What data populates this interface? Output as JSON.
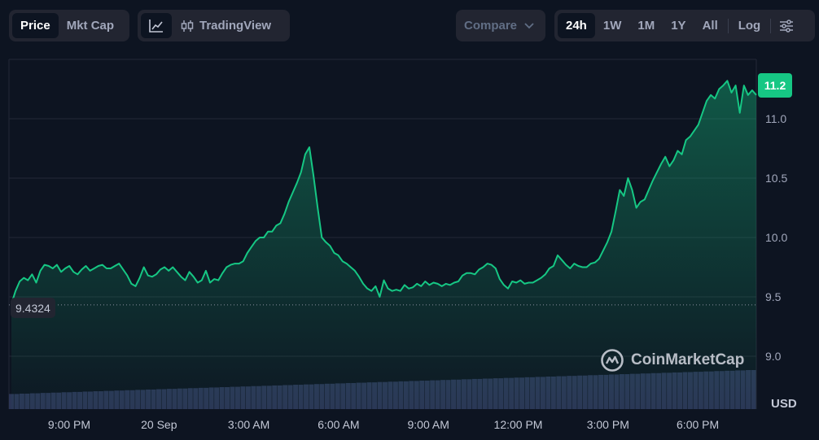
{
  "toolbar": {
    "type_tabs": [
      {
        "label": "Price",
        "active": true
      },
      {
        "label": "Mkt Cap",
        "active": false
      }
    ],
    "tools": {
      "line_icon": "line-chart-icon",
      "candle_icon": "candlestick-icon",
      "tradingview_label": "TradingView"
    },
    "compare_label": "Compare",
    "ranges": [
      {
        "label": "24h",
        "active": true
      },
      {
        "label": "1W",
        "active": false
      },
      {
        "label": "1M",
        "active": false
      },
      {
        "label": "1Y",
        "active": false
      },
      {
        "label": "All",
        "active": false
      }
    ],
    "log_label": "Log",
    "settings_icon": "sliders-icon"
  },
  "badges": {
    "last_price": "11.2",
    "open_price": "9.4324",
    "currency": "USD"
  },
  "watermark": "CoinMarketCap",
  "colors": {
    "line": "#16c784",
    "background": "#0d1421",
    "volume": "#2b3555",
    "badge": "#16c784"
  },
  "chart_data": {
    "type": "line",
    "title": "",
    "xlabel": "",
    "ylabel": "USD",
    "x_ticks": [
      "9:00 PM",
      "20 Sep",
      "3:00 AM",
      "6:00 AM",
      "9:00 AM",
      "12:00 PM",
      "3:00 PM",
      "6:00 PM"
    ],
    "y_ticks": [
      9.0,
      9.5,
      10.0,
      10.5,
      11.0
    ],
    "ylim": [
      8.95,
      11.45
    ],
    "open_reference": 9.4324,
    "last_value": 11.2,
    "series": [
      {
        "values": [
          9.44,
          9.55,
          9.63,
          9.66,
          9.64,
          9.69,
          9.62,
          9.72,
          9.77,
          9.76,
          9.74,
          9.77,
          9.71,
          9.74,
          9.76,
          9.71,
          9.69,
          9.73,
          9.76,
          9.72,
          9.74,
          9.76,
          9.77,
          9.74,
          9.74,
          9.76,
          9.78,
          9.73,
          9.68,
          9.61,
          9.59,
          9.66,
          9.75,
          9.68,
          9.67,
          9.69,
          9.73,
          9.75,
          9.72,
          9.75,
          9.71,
          9.67,
          9.64,
          9.71,
          9.67,
          9.62,
          9.64,
          9.72,
          9.62,
          9.65,
          9.64,
          9.7,
          9.75,
          9.77,
          9.78,
          9.78,
          9.8,
          9.87,
          9.92,
          9.97,
          10.0,
          10.0,
          10.05,
          10.05,
          10.1,
          10.12,
          10.2,
          10.3,
          10.38,
          10.46,
          10.55,
          10.7,
          10.76,
          10.52,
          10.25,
          10.0,
          9.96,
          9.93,
          9.87,
          9.85,
          9.8,
          9.78,
          9.75,
          9.72,
          9.67,
          9.61,
          9.57,
          9.55,
          9.59,
          9.5,
          9.64,
          9.57,
          9.55,
          9.56,
          9.55,
          9.6,
          9.57,
          9.58,
          9.61,
          9.59,
          9.63,
          9.6,
          9.62,
          9.61,
          9.59,
          9.61,
          9.6,
          9.62,
          9.63,
          9.68,
          9.7,
          9.7,
          9.69,
          9.73,
          9.75,
          9.78,
          9.77,
          9.74,
          9.65,
          9.6,
          9.57,
          9.63,
          9.62,
          9.64,
          9.61,
          9.62,
          9.62,
          9.64,
          9.66,
          9.69,
          9.74,
          9.76,
          9.85,
          9.81,
          9.77,
          9.74,
          9.78,
          9.76,
          9.75,
          9.75,
          9.78,
          9.79,
          9.82,
          9.89,
          9.96,
          10.05,
          10.22,
          10.4,
          10.35,
          10.5,
          10.4,
          10.25,
          10.3,
          10.32,
          10.4,
          10.48,
          10.55,
          10.62,
          10.68,
          10.6,
          10.65,
          10.73,
          10.7,
          10.82,
          10.85,
          10.9,
          10.95,
          11.05,
          11.15,
          11.2,
          11.17,
          11.25,
          11.28,
          11.32,
          11.22,
          11.28,
          11.05,
          11.28,
          11.2,
          11.24,
          11.2
        ]
      }
    ],
    "volume": [
      0.3,
      0.3,
      0.31,
      0.31,
      0.32,
      0.32,
      0.33,
      0.33,
      0.34,
      0.34,
      0.35,
      0.35,
      0.36,
      0.36,
      0.37,
      0.37,
      0.38,
      0.38,
      0.39,
      0.39,
      0.4,
      0.4,
      0.41,
      0.41,
      0.42,
      0.42,
      0.43,
      0.43,
      0.44,
      0.44,
      0.45,
      0.45,
      0.46,
      0.46,
      0.47,
      0.47,
      0.48,
      0.48,
      0.49,
      0.49,
      0.5,
      0.5,
      0.51,
      0.51,
      0.52,
      0.52,
      0.53,
      0.53,
      0.54,
      0.54,
      0.55,
      0.55,
      0.56,
      0.56,
      0.57,
      0.57,
      0.58,
      0.58,
      0.59,
      0.59,
      0.6,
      0.6,
      0.61,
      0.61,
      0.62,
      0.62,
      0.63,
      0.63,
      0.64,
      0.64,
      0.65,
      0.65,
      0.66,
      0.66,
      0.67,
      0.67,
      0.68,
      0.68,
      0.69,
      0.69,
      0.7,
      0.7,
      0.71,
      0.71,
      0.72,
      0.72,
      0.73,
      0.73,
      0.74,
      0.74,
      0.75,
      0.75,
      0.76,
      0.76,
      0.77,
      0.77,
      0.78,
      0.78,
      0.79,
      0.79,
      0.8,
      0.8,
      0.81,
      0.81,
      0.82,
      0.82,
      0.83,
      0.83,
      0.84,
      0.84,
      0.85,
      0.85,
      0.86,
      0.86,
      0.87,
      0.87,
      0.88,
      0.88,
      0.89,
      0.89,
      0.9,
      0.9,
      0.91,
      0.91,
      0.92,
      0.92,
      0.93,
      0.93,
      0.94,
      0.94,
      0.95,
      0.95,
      0.96,
      0.96,
      0.97,
      0.97,
      0.98,
      0.98,
      0.99,
      0.99,
      1.0,
      1.0
    ]
  }
}
